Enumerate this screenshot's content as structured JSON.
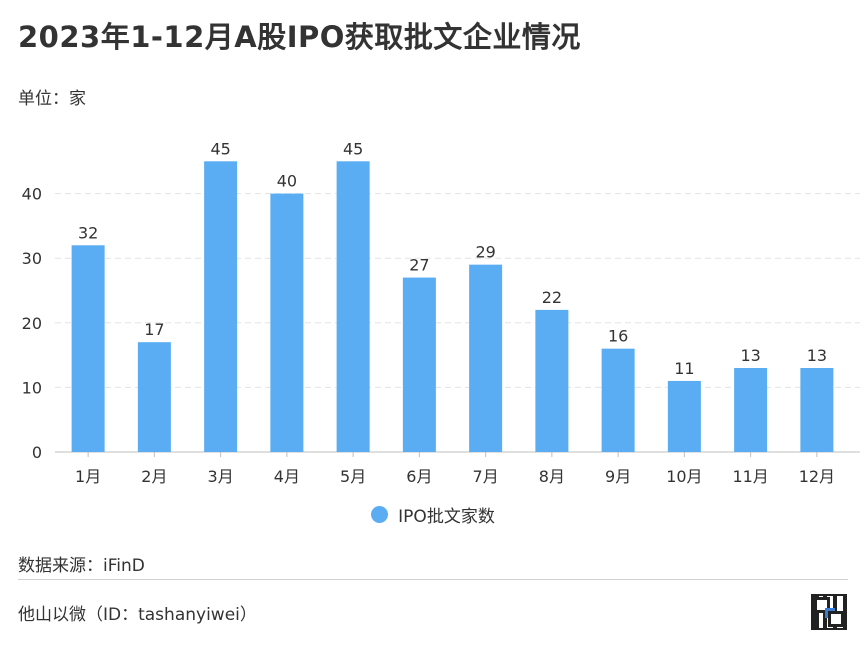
{
  "header": {
    "title": "2023年1-12月A股IPO获取批文企业情况",
    "unit": "单位：家"
  },
  "chart_data": {
    "type": "bar",
    "title": "2023年1-12月A股IPO获取批文企业情况",
    "xlabel": "",
    "ylabel": "单位：家",
    "categories": [
      "1月",
      "2月",
      "3月",
      "4月",
      "5月",
      "6月",
      "7月",
      "8月",
      "9月",
      "10月",
      "11月",
      "12月"
    ],
    "series": [
      {
        "name": "IPO批文家数",
        "values": [
          32,
          17,
          45,
          40,
          45,
          27,
          29,
          22,
          16,
          11,
          13,
          13
        ]
      }
    ],
    "yticks": [
      0,
      10,
      20,
      30,
      40
    ],
    "ylim": [
      0,
      50
    ],
    "grid": true,
    "legend_position": "bottom-center",
    "bar_color": "#5aadf3"
  },
  "footer": {
    "source": "数据来源：iFinD",
    "account": "他山以微（ID：tashanyiwei）"
  },
  "colors": {
    "bar": "#5aadf3",
    "grid": "#e3e3e3",
    "text": "#333333"
  }
}
